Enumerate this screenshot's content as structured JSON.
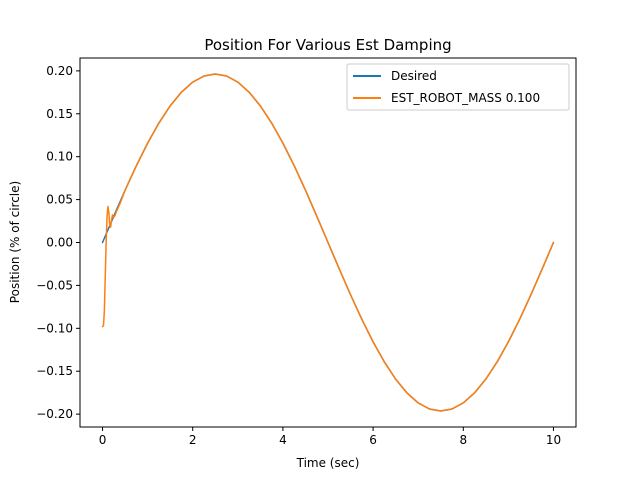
{
  "chart_data": {
    "type": "line",
    "title": "Position For Various Est Damping",
    "xlabel": "Time (sec)",
    "ylabel": "Position (% of circle)",
    "xlim": [
      -0.5,
      10.5
    ],
    "ylim": [
      -0.215,
      0.215
    ],
    "xticks": [
      0,
      2,
      4,
      6,
      8,
      10
    ],
    "yticks": [
      0.2,
      0.15,
      0.1,
      0.05,
      0.0,
      -0.05,
      -0.1,
      -0.15,
      -0.2
    ],
    "xtick_labels": [
      "0",
      "2",
      "4",
      "6",
      "8",
      "10"
    ],
    "ytick_labels": [
      "0.20",
      "0.15",
      "0.10",
      "0.05",
      "0.00",
      "−0.05",
      "−0.10",
      "−0.15",
      "−0.20"
    ],
    "grid": false,
    "legend_position": "top-right",
    "series": [
      {
        "name": "Desired",
        "color": "#1f77b4",
        "x": [
          0,
          0.25,
          0.5,
          0.75,
          1.0,
          1.25,
          1.5,
          1.75,
          2.0,
          2.25,
          2.5,
          2.75,
          3.0,
          3.25,
          3.5,
          3.75,
          4.0,
          4.25,
          4.5,
          4.75,
          5.0,
          5.25,
          5.5,
          5.75,
          6.0,
          6.25,
          6.5,
          6.75,
          7.0,
          7.25,
          7.5,
          7.75,
          8.0,
          8.25,
          8.5,
          8.75,
          9.0,
          9.25,
          9.5,
          9.75,
          10.0
        ],
        "y": [
          0.0,
          0.0308,
          0.0609,
          0.0895,
          0.1158,
          0.1392,
          0.1592,
          0.1752,
          0.1869,
          0.194,
          0.1964,
          0.194,
          0.1869,
          0.1752,
          0.1592,
          0.1392,
          0.1158,
          0.0895,
          0.0609,
          0.0308,
          0.0,
          -0.0308,
          -0.0609,
          -0.0895,
          -0.1158,
          -0.1392,
          -0.1592,
          -0.1752,
          -0.1869,
          -0.194,
          -0.1964,
          -0.194,
          -0.1869,
          -0.1752,
          -0.1592,
          -0.1392,
          -0.1158,
          -0.0895,
          -0.0609,
          -0.0308,
          0.0
        ]
      },
      {
        "name": "EST_ROBOT_MASS 0.100",
        "color": "#ff7f0e",
        "x": [
          0,
          0.02,
          0.04,
          0.06,
          0.08,
          0.1,
          0.12,
          0.14,
          0.16,
          0.18,
          0.2,
          0.22,
          0.24,
          0.26,
          0.28,
          0.3,
          0.35,
          0.4,
          0.5,
          0.75,
          1.0,
          1.25,
          1.5,
          1.75,
          2.0,
          2.25,
          2.5,
          2.75,
          3.0,
          3.25,
          3.5,
          3.75,
          4.0,
          4.25,
          4.5,
          4.75,
          5.0,
          5.25,
          5.5,
          5.75,
          6.0,
          6.25,
          6.5,
          6.75,
          7.0,
          7.25,
          7.5,
          7.75,
          8.0,
          8.25,
          8.5,
          8.75,
          9.0,
          9.25,
          9.5,
          9.75,
          10.0
        ],
        "y": [
          -0.098,
          -0.097,
          -0.08,
          -0.04,
          0.0,
          0.03,
          0.042,
          0.035,
          0.02,
          0.018,
          0.026,
          0.032,
          0.03,
          0.03,
          0.032,
          0.035,
          0.041,
          0.047,
          0.0609,
          0.0895,
          0.1158,
          0.1392,
          0.1592,
          0.1752,
          0.1869,
          0.194,
          0.1964,
          0.194,
          0.1869,
          0.1752,
          0.1592,
          0.1392,
          0.1158,
          0.0895,
          0.0609,
          0.0308,
          0.0,
          -0.0308,
          -0.0609,
          -0.0895,
          -0.1158,
          -0.1392,
          -0.1592,
          -0.1752,
          -0.1869,
          -0.194,
          -0.1964,
          -0.194,
          -0.1869,
          -0.1752,
          -0.1592,
          -0.1392,
          -0.1158,
          -0.0895,
          -0.0609,
          -0.0308,
          0.0
        ]
      }
    ]
  }
}
